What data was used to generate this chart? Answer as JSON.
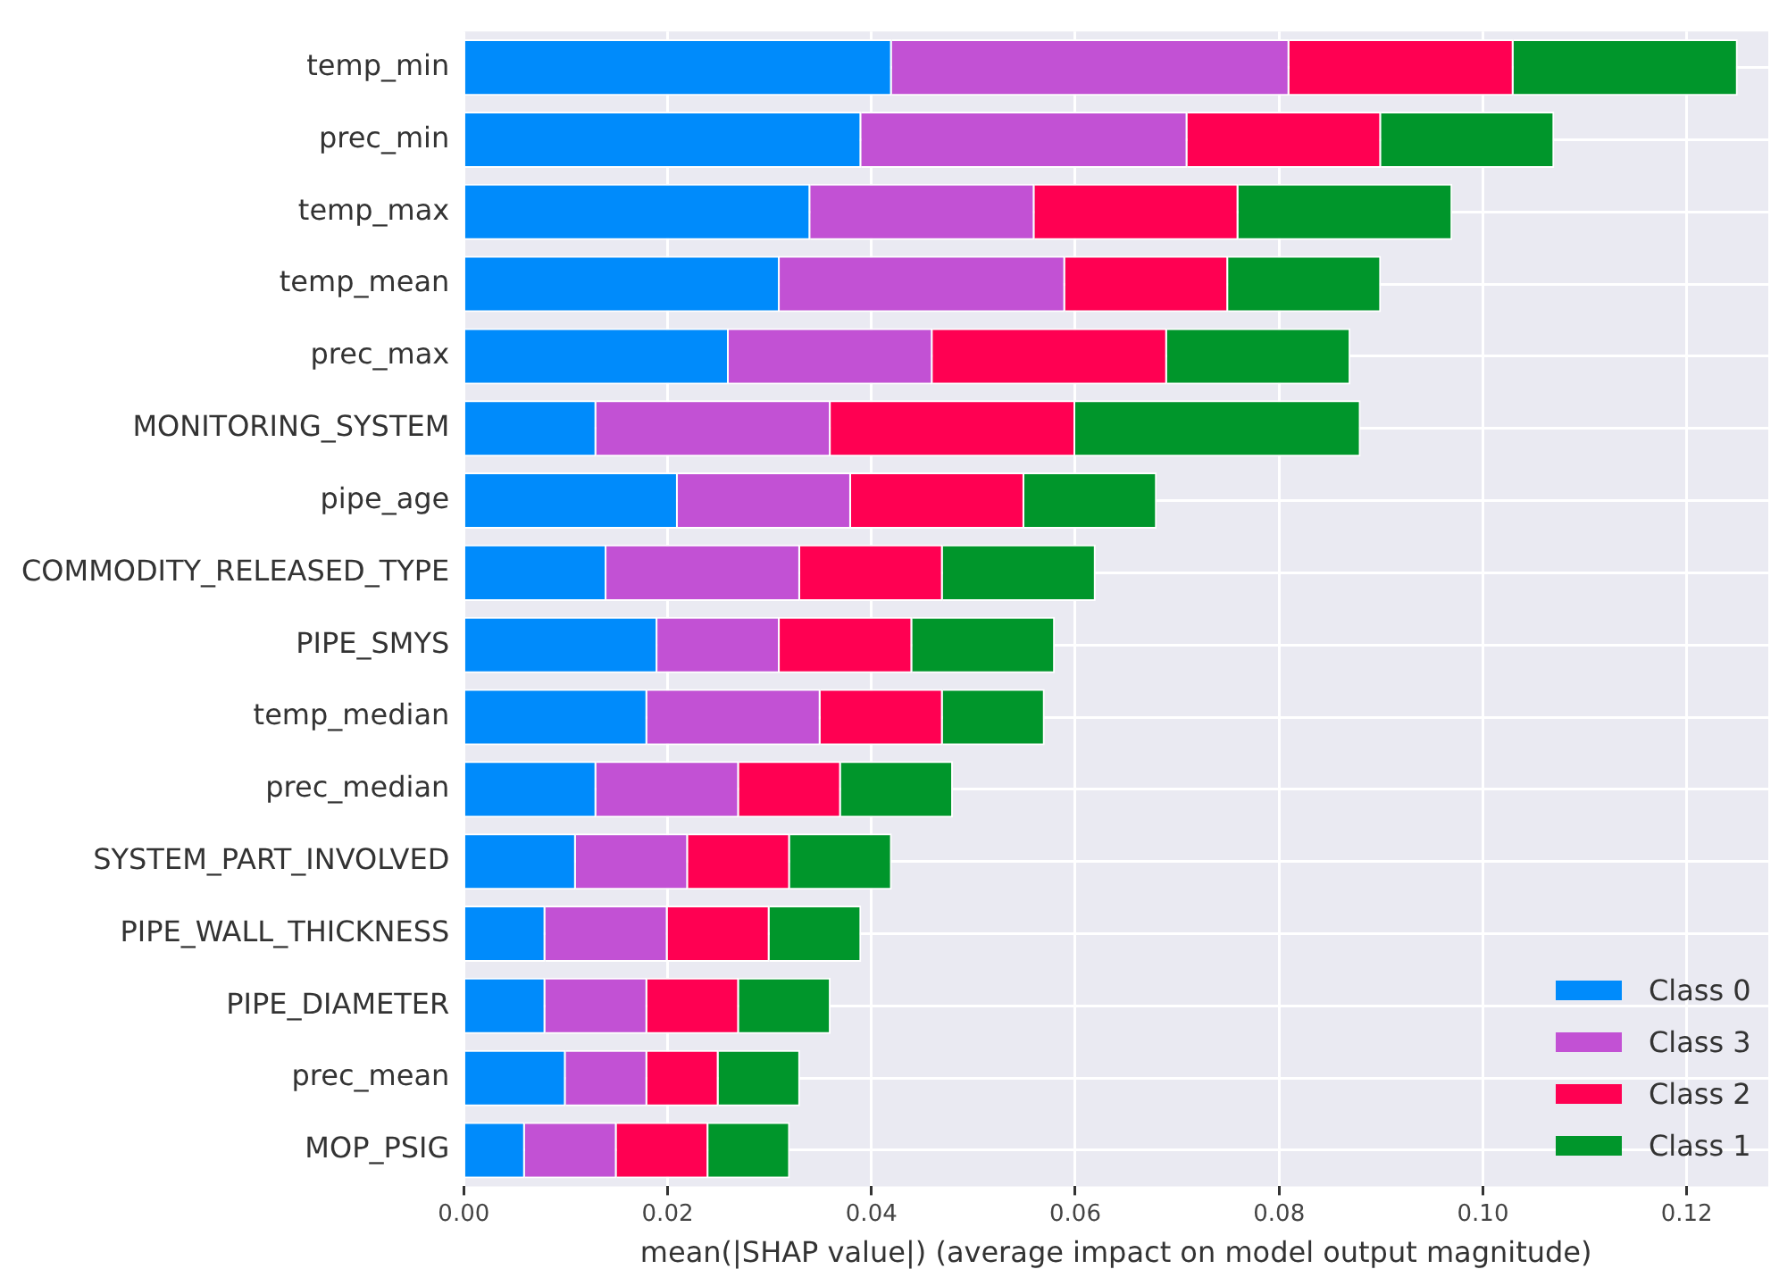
{
  "chart_data": {
    "type": "bar",
    "orientation": "horizontal",
    "stacked": true,
    "xlabel": "mean(|SHAP value|) (average impact on model output magnitude)",
    "categories": [
      "temp_min",
      "prec_min",
      "temp_max",
      "temp_mean",
      "prec_max",
      "MONITORING_SYSTEM",
      "pipe_age",
      "COMMODITY_RELEASED_TYPE",
      "PIPE_SMYS",
      "temp_median",
      "prec_median",
      "SYSTEM_PART_INVOLVED",
      "PIPE_WALL_THICKNESS",
      "PIPE_DIAMETER",
      "prec_mean",
      "MOP_PSIG"
    ],
    "series": [
      {
        "name": "Class 0",
        "color": "#008bfb",
        "values": [
          0.042,
          0.039,
          0.034,
          0.031,
          0.026,
          0.013,
          0.021,
          0.014,
          0.019,
          0.018,
          0.013,
          0.011,
          0.008,
          0.008,
          0.01,
          0.006
        ]
      },
      {
        "name": "Class 3",
        "color": "#c251d4",
        "values": [
          0.039,
          0.032,
          0.022,
          0.028,
          0.02,
          0.023,
          0.017,
          0.019,
          0.012,
          0.017,
          0.014,
          0.011,
          0.012,
          0.01,
          0.008,
          0.009
        ]
      },
      {
        "name": "Class 2",
        "color": "#ff0052",
        "values": [
          0.022,
          0.019,
          0.02,
          0.016,
          0.023,
          0.024,
          0.017,
          0.014,
          0.013,
          0.012,
          0.01,
          0.01,
          0.01,
          0.009,
          0.007,
          0.009
        ]
      },
      {
        "name": "Class 1",
        "color": "#00962b",
        "values": [
          0.022,
          0.017,
          0.021,
          0.015,
          0.018,
          0.028,
          0.013,
          0.015,
          0.014,
          0.01,
          0.011,
          0.01,
          0.009,
          0.009,
          0.008,
          0.008
        ]
      }
    ],
    "xlim": [
      0,
      0.128
    ],
    "xticks": [
      {
        "value": 0,
        "label": "0.00"
      },
      {
        "value": 0.02,
        "label": "0.02"
      },
      {
        "value": 0.04,
        "label": "0.04"
      },
      {
        "value": 0.06,
        "label": "0.06"
      },
      {
        "value": 0.08,
        "label": "0.08"
      },
      {
        "value": 0.1,
        "label": "0.10"
      },
      {
        "value": 0.12,
        "label": "0.12"
      }
    ],
    "grid": true,
    "legend": "bottom right"
  }
}
